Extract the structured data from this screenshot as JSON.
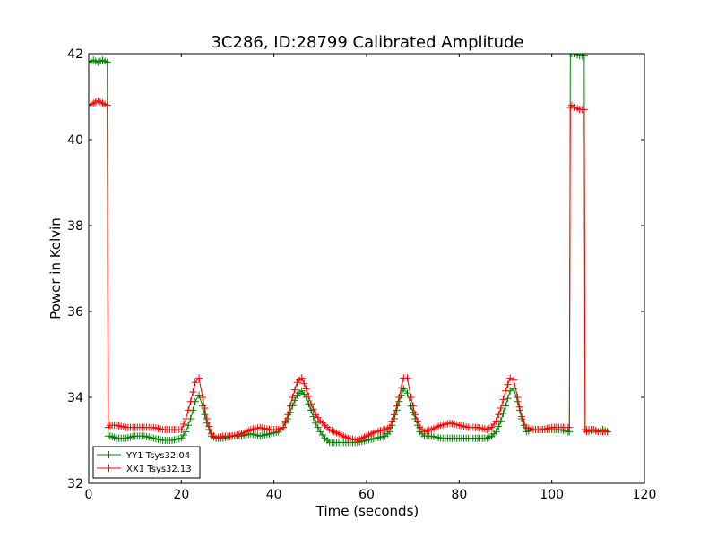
{
  "chart_data": {
    "type": "line",
    "title": "3C286, ID:28799 Calibrated Amplitude",
    "xlabel": "Time (seconds)",
    "ylabel": "Power in Kelvin",
    "xlim": [
      0,
      120
    ],
    "ylim": [
      32,
      42
    ],
    "xticks": [
      "0",
      "20",
      "40",
      "60",
      "80",
      "100",
      "120"
    ],
    "yticks": [
      "32",
      "34",
      "36",
      "38",
      "40",
      "42"
    ],
    "grid": false,
    "legend_position": "lower-left",
    "marker": "+",
    "series": [
      {
        "name": "YY1 Tsys32.04",
        "color": "#008000",
        "x": [
          0,
          1,
          2,
          3,
          4,
          4.2,
          4.6,
          6,
          8,
          10,
          12,
          14,
          16,
          18,
          20,
          21,
          22,
          23,
          23.8,
          24.6,
          25.5,
          26.5,
          27.5,
          29,
          31,
          33,
          35,
          37,
          39,
          41,
          42,
          43,
          44,
          45,
          46,
          47,
          48,
          49,
          50,
          51,
          52,
          54,
          56,
          58,
          60,
          62,
          64,
          65,
          66,
          67,
          68,
          68.8,
          69.6,
          70.5,
          71.5,
          72.5,
          74,
          76,
          78,
          80,
          82,
          84,
          86,
          87,
          88,
          89,
          90,
          91,
          91.8,
          92.6,
          93.5,
          94.5,
          96,
          98,
          100,
          102,
          103.5,
          103.8,
          104,
          104.3,
          105,
          106,
          107,
          107.2,
          107.5,
          108,
          109,
          110,
          111,
          112
        ],
        "y": [
          41.8,
          41.85,
          41.8,
          41.85,
          41.8,
          33.1,
          33.1,
          33.05,
          33.05,
          33.1,
          33.1,
          33.05,
          33.0,
          33.0,
          33.05,
          33.2,
          33.5,
          33.9,
          34.05,
          33.8,
          33.4,
          33.1,
          33.05,
          33.05,
          33.1,
          33.1,
          33.15,
          33.1,
          33.15,
          33.2,
          33.3,
          33.5,
          33.8,
          34.05,
          34.15,
          34.0,
          33.7,
          33.4,
          33.2,
          33.05,
          32.95,
          32.95,
          32.95,
          32.95,
          33.0,
          33.05,
          33.1,
          33.2,
          33.5,
          33.9,
          34.2,
          34.1,
          33.8,
          33.5,
          33.2,
          33.1,
          33.1,
          33.05,
          33.05,
          33.05,
          33.05,
          33.05,
          33.05,
          33.1,
          33.2,
          33.45,
          33.8,
          34.15,
          34.2,
          33.9,
          33.5,
          33.2,
          33.25,
          33.25,
          33.25,
          33.25,
          33.2,
          33.2,
          42.0,
          42.0,
          42.0,
          41.95,
          41.95,
          33.25,
          33.25,
          33.2,
          33.25,
          33.2,
          33.25,
          33.2
        ]
      },
      {
        "name": "XX1 Tsys32.13",
        "color": "#ff0000",
        "x": [
          0,
          1,
          2,
          3,
          4,
          4.2,
          4.6,
          6,
          8,
          10,
          12,
          14,
          16,
          18,
          20,
          21,
          22,
          23,
          23.8,
          24.6,
          25.5,
          26.5,
          27.5,
          29,
          31,
          33,
          35,
          37,
          39,
          41,
          42,
          43,
          44,
          45,
          46,
          47,
          48,
          49,
          50,
          51,
          52,
          54,
          56,
          58,
          60,
          62,
          64,
          65,
          66,
          67,
          68,
          68.8,
          69.6,
          70.5,
          71.5,
          72.5,
          74,
          76,
          78,
          80,
          82,
          84,
          86,
          87,
          88,
          89,
          90,
          91,
          91.8,
          92.6,
          93.5,
          94.5,
          96,
          98,
          100,
          102,
          103.5,
          103.8,
          104,
          104.3,
          105,
          106,
          107,
          107.2,
          107.5,
          108,
          109,
          110,
          111,
          112
        ],
        "y": [
          40.8,
          40.85,
          40.9,
          40.85,
          40.8,
          33.3,
          33.35,
          33.35,
          33.3,
          33.3,
          33.3,
          33.3,
          33.25,
          33.25,
          33.25,
          33.5,
          33.9,
          34.35,
          34.45,
          34.0,
          33.5,
          33.15,
          33.05,
          33.1,
          33.1,
          33.15,
          33.25,
          33.3,
          33.25,
          33.25,
          33.3,
          33.6,
          34.0,
          34.35,
          34.45,
          34.2,
          33.85,
          33.6,
          33.45,
          33.35,
          33.25,
          33.15,
          33.05,
          33.0,
          33.1,
          33.2,
          33.25,
          33.3,
          33.6,
          34.0,
          34.45,
          34.45,
          34.0,
          33.6,
          33.3,
          33.2,
          33.25,
          33.35,
          33.4,
          33.35,
          33.3,
          33.3,
          33.25,
          33.3,
          33.45,
          33.75,
          34.15,
          34.45,
          34.4,
          34.0,
          33.55,
          33.3,
          33.25,
          33.25,
          33.3,
          33.3,
          33.3,
          33.3,
          40.75,
          40.8,
          40.75,
          40.7,
          40.7,
          33.25,
          33.2,
          33.25,
          33.25,
          33.2,
          33.2,
          33.2
        ]
      }
    ]
  }
}
